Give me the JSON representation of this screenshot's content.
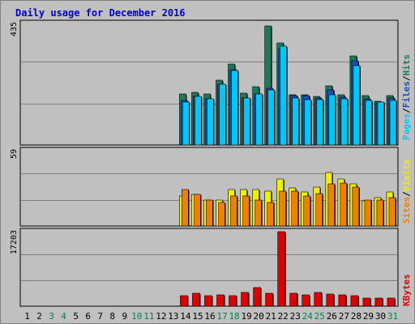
{
  "chart_data": [
    {
      "type": "bar",
      "title": "Daily usage for December 2016",
      "panel": "hits-files-pages",
      "ymax_label": "435",
      "ylim": [
        0,
        435
      ],
      "grid": true,
      "legend": [
        "Pages",
        "/",
        "Files",
        "/",
        "Hits"
      ],
      "legend_placement": "right-vertical",
      "categories": [
        "1",
        "2",
        "3",
        "4",
        "5",
        "6",
        "7",
        "8",
        "9",
        "10",
        "11",
        "12",
        "13",
        "14",
        "15",
        "16",
        "17",
        "18",
        "19",
        "20",
        "21",
        "22",
        "23",
        "24",
        "25",
        "26",
        "27",
        "28",
        "29",
        "30",
        "31"
      ],
      "series": [
        {
          "name": "Hits",
          "color": "#1b7a5a",
          "values": [
            0,
            0,
            0,
            0,
            0,
            0,
            0,
            0,
            0,
            0,
            0,
            0,
            0,
            180,
            187,
            180,
            228,
            285,
            183,
            207,
            420,
            360,
            178,
            178,
            172,
            210,
            178,
            315,
            175,
            155,
            175
          ]
        },
        {
          "name": "Files",
          "color": "#1a4fb8",
          "values": [
            0,
            0,
            0,
            0,
            0,
            0,
            0,
            0,
            0,
            0,
            0,
            0,
            0,
            158,
            172,
            163,
            215,
            265,
            166,
            181,
            200,
            340,
            176,
            175,
            166,
            195,
            168,
            298,
            163,
            150,
            166
          ]
        },
        {
          "name": "Pages",
          "color": "#00c8f5",
          "values": [
            0,
            0,
            0,
            0,
            0,
            0,
            0,
            0,
            0,
            0,
            0,
            0,
            0,
            153,
            172,
            163,
            215,
            262,
            166,
            181,
            196,
            350,
            166,
            159,
            160,
            178,
            163,
            280,
            157,
            153,
            157
          ]
        }
      ]
    },
    {
      "type": "bar",
      "panel": "visits-sites",
      "ymax_label": "59",
      "ylim": [
        0,
        59
      ],
      "grid": true,
      "legend": [
        "Sites",
        "/",
        "Visits"
      ],
      "legend_placement": "right-vertical",
      "categories": [
        "1",
        "2",
        "3",
        "4",
        "5",
        "6",
        "7",
        "8",
        "9",
        "10",
        "11",
        "12",
        "13",
        "14",
        "15",
        "16",
        "17",
        "18",
        "19",
        "20",
        "21",
        "22",
        "23",
        "24",
        "25",
        "26",
        "27",
        "28",
        "29",
        "30",
        "31"
      ],
      "series": [
        {
          "name": "Visits",
          "color": "#f0f000",
          "values": [
            0,
            0,
            0,
            0,
            0,
            0,
            0,
            0,
            0,
            0,
            0,
            0,
            0,
            23,
            24,
            20,
            20,
            28,
            28,
            28,
            27,
            36,
            29,
            26,
            30,
            41,
            36,
            32,
            19,
            22,
            26
          ]
        },
        {
          "name": "Sites",
          "color": "#f08000",
          "values": [
            0,
            0,
            0,
            0,
            0,
            0,
            0,
            0,
            0,
            0,
            0,
            0,
            0,
            28,
            24,
            20,
            18,
            23,
            23,
            20,
            18,
            27,
            27,
            23,
            25,
            32,
            33,
            30,
            20,
            20,
            22
          ]
        }
      ]
    },
    {
      "type": "bar",
      "panel": "kbytes",
      "ymax_label": "17203",
      "ylim": [
        0,
        17203
      ],
      "grid": true,
      "legend": [
        "KBytes"
      ],
      "legend_placement": "right-vertical",
      "categories": [
        "1",
        "2",
        "3",
        "4",
        "5",
        "6",
        "7",
        "8",
        "9",
        "10",
        "11",
        "12",
        "13",
        "14",
        "15",
        "16",
        "17",
        "18",
        "19",
        "20",
        "21",
        "22",
        "23",
        "24",
        "25",
        "26",
        "27",
        "28",
        "29",
        "30",
        "31"
      ],
      "series": [
        {
          "name": "KBytes",
          "color": "#e00000",
          "values": [
            0,
            0,
            0,
            0,
            0,
            0,
            0,
            0,
            0,
            0,
            0,
            0,
            0,
            2300,
            2900,
            2300,
            2600,
            2300,
            3100,
            4200,
            2900,
            16800,
            2900,
            2600,
            3100,
            2700,
            2500,
            2300,
            1900,
            1900,
            1900
          ]
        }
      ]
    }
  ],
  "x_axis": {
    "labels": [
      "1",
      "2",
      "3",
      "4",
      "5",
      "6",
      "7",
      "8",
      "9",
      "10",
      "11",
      "12",
      "13",
      "14",
      "15",
      "16",
      "17",
      "18",
      "19",
      "20",
      "21",
      "22",
      "23",
      "24",
      "25",
      "26",
      "27",
      "28",
      "29",
      "30",
      "31"
    ],
    "weekend_days": [
      "3",
      "4",
      "10",
      "11",
      "17",
      "18",
      "24",
      "25",
      "31"
    ],
    "weekday_color": "#000000",
    "weekend_color": "#00805a"
  },
  "colors": {
    "background": "#c0c0c0",
    "plot_bg": "#c0c0c0",
    "grid": "#808080",
    "title": "#0000cc",
    "legend_pages": "#00c8f5",
    "legend_files": "#1a4fb8",
    "legend_hits": "#1b7a5a",
    "legend_sites": "#f08000",
    "legend_visits": "#f0f000",
    "legend_kbytes": "#e00000"
  }
}
